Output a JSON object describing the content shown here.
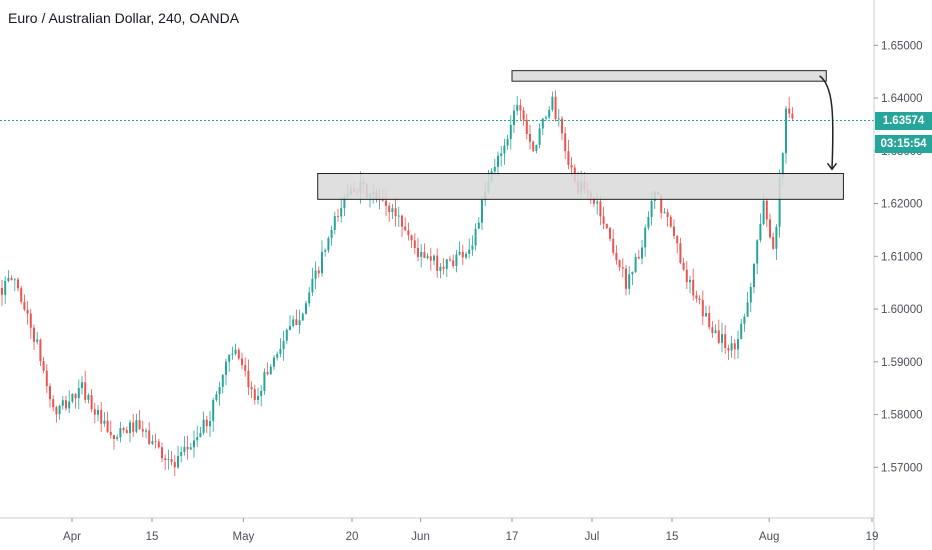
{
  "title": "Euro / Australian Dollar, 240, OANDA",
  "current_price": "1.63574",
  "countdown": "03:15:54",
  "colors": {
    "up": "#26a69a",
    "down": "#ef5350",
    "price_line": "#26a69a",
    "zone_fill": "#d9d9d9",
    "zone_stroke": "#222222",
    "axis_text": "#4a4f5a"
  },
  "chart_data": {
    "type": "candlestick",
    "symbol": "EURAUD",
    "interval": "240",
    "source": "OANDA",
    "ylim": [
      1.5638,
      1.6548
    ],
    "y_ticks": [
      "1.65000",
      "1.64000",
      "1.63000",
      "1.62000",
      "1.61000",
      "1.60000",
      "1.59000",
      "1.58000",
      "1.57000"
    ],
    "x_ticks": [
      "Apr",
      "15",
      "May",
      "20",
      "Jun",
      "17",
      "Jul",
      "15",
      "Aug",
      "19"
    ],
    "last_price": 1.63574,
    "price_path": [
      {
        "date": "2019-03-20",
        "price": 1.604
      },
      {
        "date": "2019-03-22",
        "price": 1.606
      },
      {
        "date": "2019-03-26",
        "price": 1.593
      },
      {
        "date": "2019-03-29",
        "price": 1.58
      },
      {
        "date": "2019-04-03",
        "price": 1.585
      },
      {
        "date": "2019-04-08",
        "price": 1.575
      },
      {
        "date": "2019-04-12",
        "price": 1.578
      },
      {
        "date": "2019-04-16",
        "price": 1.574
      },
      {
        "date": "2019-04-19",
        "price": 1.57
      },
      {
        "date": "2019-04-25",
        "price": 1.579
      },
      {
        "date": "2019-04-29",
        "price": 1.593
      },
      {
        "date": "2019-05-03",
        "price": 1.583
      },
      {
        "date": "2019-05-07",
        "price": 1.592
      },
      {
        "date": "2019-05-12",
        "price": 1.601
      },
      {
        "date": "2019-05-17",
        "price": 1.616
      },
      {
        "date": "2019-05-20",
        "price": 1.624
      },
      {
        "date": "2019-05-24",
        "price": 1.621
      },
      {
        "date": "2019-05-28",
        "price": 1.618
      },
      {
        "date": "2019-06-01",
        "price": 1.61
      },
      {
        "date": "2019-06-05",
        "price": 1.608
      },
      {
        "date": "2019-06-10",
        "price": 1.612
      },
      {
        "date": "2019-06-13",
        "price": 1.624
      },
      {
        "date": "2019-06-17",
        "price": 1.635
      },
      {
        "date": "2019-06-18",
        "price": 1.64
      },
      {
        "date": "2019-06-21",
        "price": 1.63
      },
      {
        "date": "2019-06-24",
        "price": 1.64
      },
      {
        "date": "2019-06-28",
        "price": 1.624
      },
      {
        "date": "2019-07-02",
        "price": 1.62
      },
      {
        "date": "2019-07-07",
        "price": 1.605
      },
      {
        "date": "2019-07-10",
        "price": 1.612
      },
      {
        "date": "2019-07-12",
        "price": 1.622
      },
      {
        "date": "2019-07-15",
        "price": 1.615
      },
      {
        "date": "2019-07-19",
        "price": 1.602
      },
      {
        "date": "2019-07-23",
        "price": 1.595
      },
      {
        "date": "2019-07-26",
        "price": 1.592
      },
      {
        "date": "2019-07-29",
        "price": 1.605
      },
      {
        "date": "2019-07-31",
        "price": 1.62
      },
      {
        "date": "2019-08-02",
        "price": 1.612
      },
      {
        "date": "2019-08-04",
        "price": 1.637
      },
      {
        "date": "2019-08-05",
        "price": 1.636
      }
    ],
    "annotations": [
      {
        "type": "rectangle",
        "role": "resistance-zone",
        "start": "2019-06-17",
        "end": "2019-08-11",
        "top": 1.6452,
        "bottom": 1.6432
      },
      {
        "type": "rectangle",
        "role": "support-zone",
        "start": "2019-05-14",
        "end": "2019-08-14",
        "top": 1.6257,
        "bottom": 1.6208
      },
      {
        "type": "arrow",
        "role": "projected-move",
        "from_date": "2019-08-10",
        "from_price": 1.6442,
        "to_date": "2019-08-12",
        "to_price": 1.6265
      }
    ]
  }
}
